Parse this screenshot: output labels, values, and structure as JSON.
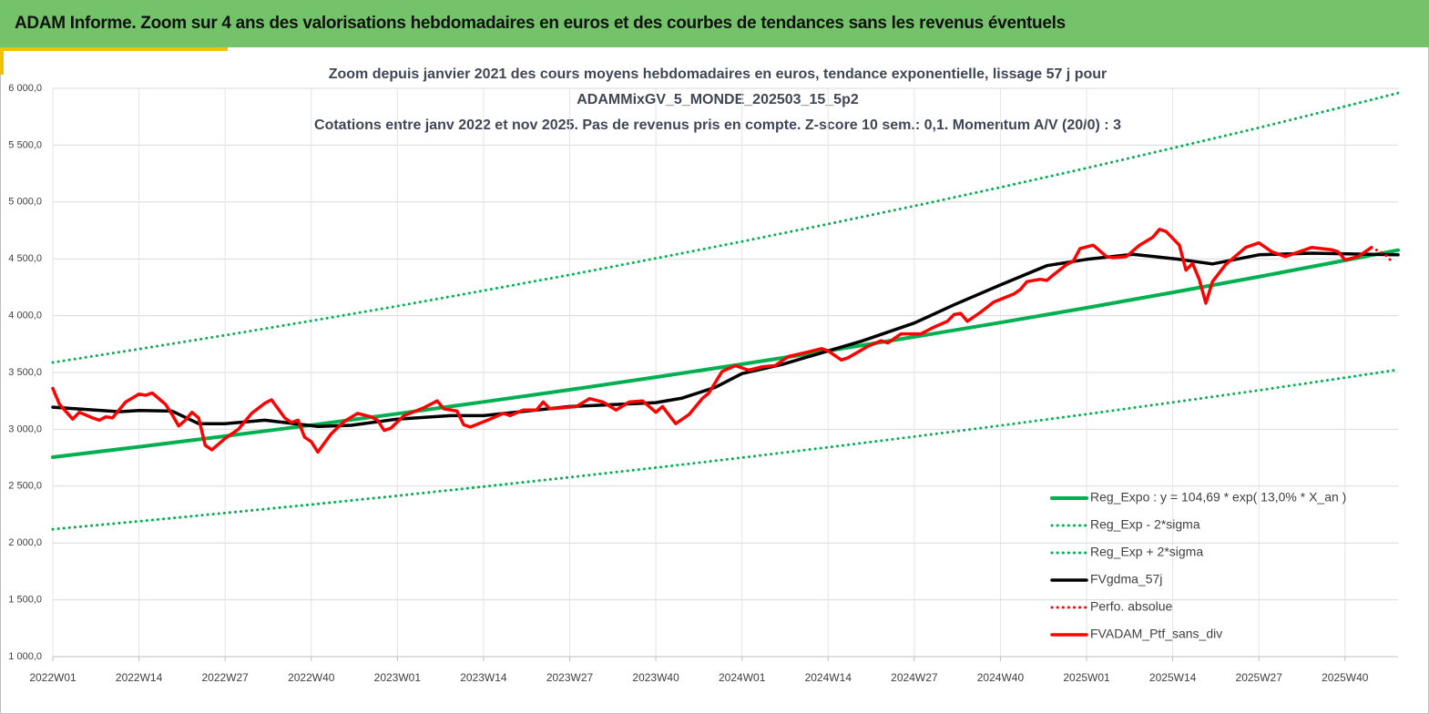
{
  "header": {
    "title": "ADAM Informe. Zoom sur 4 ans des valorisations hebdomadaires en euros et des courbes de tendances sans les revenus éventuels"
  },
  "chart_data": {
    "type": "line",
    "title": [
      "Zoom depuis janvier 2021 des cours moyens hebdomadaires  en euros, tendance exponentielle, lissage 57 j pour",
      "ADAMMixGV_5_MONDE_202503_15_5p2",
      "Cotations  entre janv 2022 et nov 2025. Pas de revenus pris en compte. Z-score 10 sem.: 0,1. Momentum  A/V (20/0) : 3"
    ],
    "xlim": [
      0,
      203
    ],
    "xticks": [
      {
        "value": 0,
        "label": "2022W01"
      },
      {
        "value": 13,
        "label": "2022W14"
      },
      {
        "value": 26,
        "label": "2022W27"
      },
      {
        "value": 39,
        "label": "2022W40"
      },
      {
        "value": 52,
        "label": "2023W01"
      },
      {
        "value": 65,
        "label": "2023W14"
      },
      {
        "value": 78,
        "label": "2023W27"
      },
      {
        "value": 91,
        "label": "2023W40"
      },
      {
        "value": 104,
        "label": "2024W01"
      },
      {
        "value": 117,
        "label": "2024W14"
      },
      {
        "value": 130,
        "label": "2024W27"
      },
      {
        "value": 143,
        "label": "2024W40"
      },
      {
        "value": 156,
        "label": "2025W01"
      },
      {
        "value": 169,
        "label": "2025W14"
      },
      {
        "value": 182,
        "label": "2025W27"
      },
      {
        "value": 195,
        "label": "2025W40"
      }
    ],
    "ylim": [
      1000,
      6000
    ],
    "yticks": [
      {
        "value": 1000,
        "label": "1 000,0"
      },
      {
        "value": 1500,
        "label": "1 500,0"
      },
      {
        "value": 2000,
        "label": "2 000,0"
      },
      {
        "value": 2500,
        "label": "2 500,0"
      },
      {
        "value": 3000,
        "label": "3 000,0"
      },
      {
        "value": 3500,
        "label": "3 500,0"
      },
      {
        "value": 4000,
        "label": "4 000,0"
      },
      {
        "value": 4500,
        "label": "4 500,0"
      },
      {
        "value": 5000,
        "label": "5 000,0"
      },
      {
        "value": 5500,
        "label": "5 500,0"
      },
      {
        "value": 6000,
        "label": "6 000,0"
      }
    ],
    "grid": true,
    "legend": "lower right",
    "series": [
      {
        "name": "Reg_Expo : y = 104,69 * exp( 13,0% *  X_an )",
        "color": "#00b050",
        "dash": "solid",
        "width": 4,
        "x": [
          0,
          13,
          26,
          39,
          52,
          65,
          78,
          91,
          104,
          117,
          130,
          143,
          156,
          169,
          182,
          195,
          203
        ],
        "values": [
          2755,
          2846,
          2940,
          3037,
          3137,
          3241,
          3348,
          3459,
          3573,
          3691,
          3813,
          3939,
          4069,
          4204,
          4342,
          4486,
          4576
        ]
      },
      {
        "name": "Reg_Exp - 2*sigma",
        "color": "#00b050",
        "dash": "dotted",
        "width": 3,
        "x": [
          0,
          13,
          26,
          39,
          52,
          65,
          78,
          91,
          104,
          117,
          130,
          143,
          156,
          169,
          182,
          195,
          203
        ],
        "values": [
          2121,
          2191,
          2264,
          2338,
          2415,
          2496,
          2578,
          2663,
          2751,
          2842,
          2936,
          3033,
          3133,
          3237,
          3343,
          3454,
          3524
        ]
      },
      {
        "name": "Reg_Exp + 2*sigma",
        "color": "#00b050",
        "dash": "dotted",
        "width": 3,
        "x": [
          0,
          13,
          26,
          39,
          52,
          65,
          78,
          91,
          104,
          117,
          130,
          143,
          156,
          169,
          182,
          195,
          203
        ],
        "values": [
          3588,
          3706,
          3828,
          3954,
          4084,
          4220,
          4359,
          4504,
          4652,
          4806,
          4965,
          5129,
          5298,
          5474,
          5653,
          5841,
          5958
        ]
      },
      {
        "name": "FVgdma_57j",
        "color": "#000000",
        "dash": "solid",
        "width": 3.5,
        "x": [
          0,
          10,
          13,
          18,
          22,
          26,
          32,
          40,
          45,
          52,
          60,
          65,
          78,
          91,
          95,
          100,
          104,
          110,
          117,
          122,
          130,
          136,
          143,
          150,
          156,
          163,
          170,
          175,
          182,
          190,
          203
        ],
        "values": [
          3195,
          3155,
          3165,
          3160,
          3050,
          3050,
          3080,
          3025,
          3035,
          3090,
          3120,
          3120,
          3200,
          3235,
          3275,
          3370,
          3490,
          3570,
          3690,
          3775,
          3935,
          4095,
          4270,
          4440,
          4495,
          4540,
          4495,
          4455,
          4535,
          4550,
          4535
        ]
      },
      {
        "name": "Perfo. absolue",
        "color": "#ff0000",
        "dash": "dotted",
        "width": 3,
        "x": [
          199,
          201,
          202
        ],
        "values": [
          4600,
          4540,
          4480
        ]
      },
      {
        "name": "FVADAM_Ptf_sans_div",
        "color": "#ff0000",
        "dash": "solid",
        "width": 3.5,
        "x": [
          0,
          1,
          3,
          4,
          6,
          7,
          8,
          9,
          11,
          13,
          14,
          15,
          17,
          18,
          19,
          20,
          21,
          22,
          23,
          24,
          26,
          28,
          30,
          32,
          33,
          35,
          36,
          37,
          38,
          39,
          40,
          42,
          44,
          46,
          48,
          49,
          50,
          51,
          53,
          56,
          58,
          59,
          61,
          62,
          63,
          66,
          68,
          69,
          71,
          73,
          74,
          75,
          77,
          79,
          81,
          83,
          85,
          87,
          89,
          91,
          92,
          94,
          96,
          98,
          99,
          101,
          103,
          105,
          107,
          109,
          111,
          114,
          116,
          117,
          119,
          120,
          123,
          125,
          126,
          128,
          131,
          133,
          135,
          136,
          137,
          138,
          140,
          142,
          145,
          146,
          147,
          149,
          150,
          151,
          153,
          154,
          155,
          157,
          159,
          160,
          162,
          164,
          166,
          167,
          168,
          170,
          171,
          172,
          173,
          174,
          175,
          177,
          180,
          182,
          184,
          186,
          188,
          190,
          193,
          194,
          195,
          197,
          198,
          199
        ],
        "values": [
          3360,
          3220,
          3090,
          3150,
          3100,
          3080,
          3110,
          3100,
          3240,
          3310,
          3300,
          3320,
          3220,
          3130,
          3030,
          3080,
          3150,
          3100,
          2860,
          2820,
          2920,
          3000,
          3140,
          3230,
          3260,
          3100,
          3060,
          3080,
          2930,
          2890,
          2800,
          2960,
          3070,
          3140,
          3110,
          3080,
          2990,
          3010,
          3120,
          3190,
          3250,
          3180,
          3160,
          3040,
          3020,
          3090,
          3140,
          3120,
          3170,
          3170,
          3240,
          3180,
          3190,
          3200,
          3270,
          3240,
          3170,
          3240,
          3250,
          3150,
          3200,
          3050,
          3130,
          3270,
          3320,
          3510,
          3560,
          3520,
          3550,
          3560,
          3640,
          3680,
          3710,
          3690,
          3610,
          3630,
          3730,
          3780,
          3760,
          3840,
          3840,
          3900,
          3950,
          4010,
          4020,
          3950,
          4030,
          4120,
          4190,
          4230,
          4300,
          4320,
          4310,
          4360,
          4450,
          4480,
          4590,
          4620,
          4520,
          4510,
          4520,
          4620,
          4690,
          4760,
          4740,
          4620,
          4400,
          4460,
          4320,
          4110,
          4300,
          4450,
          4600,
          4640,
          4560,
          4520,
          4560,
          4600,
          4580,
          4560,
          4490,
          4520,
          4560,
          4600
        ]
      }
    ]
  }
}
